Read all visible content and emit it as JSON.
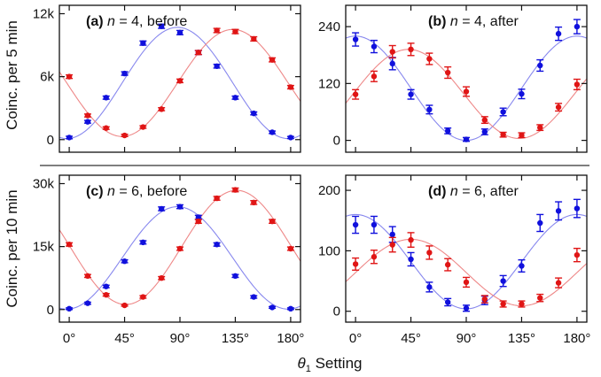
{
  "colors": {
    "series_a": "#1010dd",
    "series_b": "#e01515",
    "fit_a": "#8888ee",
    "fit_b": "#ee8888",
    "frame": "#111111",
    "divider": "#555555"
  },
  "figure": {
    "xlabel_var": "θ",
    "xlabel_sub": "1",
    "xlabel_rest": " Setting",
    "row_labels": [
      "Coinc. per 5 min",
      "Coinc. per 10 min"
    ]
  },
  "chart_data": [
    {
      "type": "scatter",
      "panel": "(a)",
      "title_n": "4",
      "title_rest": ", before",
      "xlim": [
        -8,
        188
      ],
      "ylim": [
        -1200,
        12800
      ],
      "xticks": [
        0,
        45,
        90,
        135,
        180
      ],
      "xtick_labels": [
        "0°",
        "45°",
        "90°",
        "135°",
        "180°"
      ],
      "yticks": [
        0,
        6000,
        12000
      ],
      "ytick_labels": [
        "0",
        "6k",
        "12k"
      ],
      "x": [
        0,
        15,
        30,
        45,
        60,
        75,
        90,
        105,
        120,
        135,
        150,
        165,
        180
      ],
      "series": [
        {
          "color": "blue",
          "values": [
            200,
            1700,
            4000,
            6300,
            9200,
            10800,
            10200,
            8300,
            7000,
            4000,
            2500,
            700,
            200
          ],
          "errors": [
            120,
            130,
            150,
            170,
            200,
            200,
            200,
            190,
            180,
            150,
            140,
            120,
            100
          ]
        },
        {
          "color": "red",
          "values": [
            6000,
            2300,
            1100,
            400,
            1200,
            2900,
            5600,
            8300,
            10400,
            10300,
            9600,
            7600,
            5000
          ],
          "errors": [
            170,
            140,
            120,
            110,
            120,
            140,
            170,
            190,
            200,
            200,
            200,
            190,
            160
          ]
        }
      ],
      "fits": [
        {
          "color": "blue",
          "amp": 5300,
          "offset": 5400,
          "phase": 88
        },
        {
          "color": "red",
          "amp": 5100,
          "offset": 5400,
          "phase": 133
        }
      ]
    },
    {
      "type": "scatter",
      "panel": "(b)",
      "title_n": "4",
      "title_rest": ", after",
      "xlim": [
        -8,
        188
      ],
      "ylim": [
        -25,
        285
      ],
      "xticks": [
        0,
        45,
        90,
        135,
        180
      ],
      "xtick_labels": [
        "0°",
        "45°",
        "90°",
        "135°",
        "180°"
      ],
      "yticks": [
        0,
        120,
        240
      ],
      "ytick_labels": [
        "0",
        "120",
        "240"
      ],
      "x": [
        0,
        15,
        30,
        45,
        60,
        75,
        90,
        105,
        120,
        135,
        150,
        165,
        180
      ],
      "series": [
        {
          "color": "blue",
          "values": [
            213,
            198,
            162,
            97,
            65,
            20,
            2,
            18,
            60,
            98,
            158,
            225,
            240
          ],
          "errors": [
            14,
            13,
            13,
            10,
            9,
            6,
            4,
            6,
            8,
            10,
            12,
            14,
            15
          ]
        },
        {
          "color": "red",
          "values": [
            97,
            135,
            187,
            192,
            172,
            143,
            103,
            43,
            12,
            11,
            27,
            70,
            118
          ],
          "errors": [
            10,
            11,
            13,
            13,
            12,
            12,
            10,
            7,
            5,
            5,
            6,
            8,
            11
          ]
        }
      ],
      "fits": [
        {
          "color": "blue",
          "amp": 110,
          "offset": 110,
          "phase": 0
        },
        {
          "color": "red",
          "amp": 94,
          "offset": 98,
          "phase": 43
        }
      ]
    },
    {
      "type": "scatter",
      "panel": "(c)",
      "title_n": "6",
      "title_rest": ", before",
      "xlim": [
        -8,
        188
      ],
      "ylim": [
        -3000,
        32000
      ],
      "xticks": [
        0,
        45,
        90,
        135,
        180
      ],
      "xtick_labels": [
        "0°",
        "45°",
        "90°",
        "135°",
        "180°"
      ],
      "yticks": [
        0,
        15000,
        30000
      ],
      "ytick_labels": [
        "0",
        "15k",
        "30k"
      ],
      "x": [
        0,
        15,
        30,
        45,
        60,
        75,
        90,
        105,
        120,
        135,
        150,
        165,
        180
      ],
      "series": [
        {
          "color": "blue",
          "values": [
            200,
            1500,
            5500,
            11500,
            16000,
            24000,
            24500,
            22000,
            15500,
            8000,
            3000,
            500,
            200
          ],
          "errors": [
            200,
            250,
            300,
            350,
            400,
            450,
            450,
            450,
            400,
            350,
            300,
            200,
            200
          ]
        },
        {
          "color": "red",
          "values": [
            15500,
            8000,
            3500,
            1000,
            3000,
            7500,
            14500,
            21000,
            26500,
            28500,
            25500,
            21000,
            14500
          ],
          "errors": [
            400,
            350,
            300,
            200,
            300,
            350,
            400,
            450,
            450,
            450,
            450,
            450,
            400
          ]
        }
      ],
      "fits": [
        {
          "color": "blue",
          "amp": 12200,
          "offset": 12300,
          "phase": 88
        },
        {
          "color": "red",
          "amp": 13600,
          "offset": 14800,
          "phase": 136
        }
      ]
    },
    {
      "type": "scatter",
      "panel": "(d)",
      "title_n": "6",
      "title_rest": ", after",
      "xlim": [
        -8,
        188
      ],
      "ylim": [
        -18,
        225
      ],
      "xticks": [
        0,
        45,
        90,
        135,
        180
      ],
      "xtick_labels": [
        "0°",
        "45°",
        "90°",
        "135°",
        "180°"
      ],
      "yticks": [
        0,
        100,
        200
      ],
      "ytick_labels": [
        "0",
        "100",
        "200"
      ],
      "x": [
        0,
        15,
        30,
        45,
        60,
        75,
        90,
        105,
        120,
        135,
        150,
        165,
        180
      ],
      "series": [
        {
          "color": "blue",
          "values": [
            143,
            143,
            127,
            86,
            40,
            15,
            5,
            18,
            50,
            75,
            146,
            166,
            170
          ],
          "errors": [
            14,
            14,
            13,
            11,
            8,
            6,
            5,
            7,
            9,
            10,
            14,
            15,
            15
          ]
        },
        {
          "color": "red",
          "values": [
            78,
            90,
            110,
            118,
            97,
            77,
            48,
            20,
            12,
            12,
            22,
            47,
            93
          ],
          "errors": [
            10,
            11,
            12,
            12,
            11,
            10,
            8,
            6,
            5,
            5,
            6,
            8,
            11
          ]
        }
      ],
      "fits": [
        {
          "color": "blue",
          "amp": 78,
          "offset": 82,
          "phase": 0
        },
        {
          "color": "red",
          "amp": 55,
          "offset": 64,
          "phase": 45
        }
      ]
    }
  ]
}
